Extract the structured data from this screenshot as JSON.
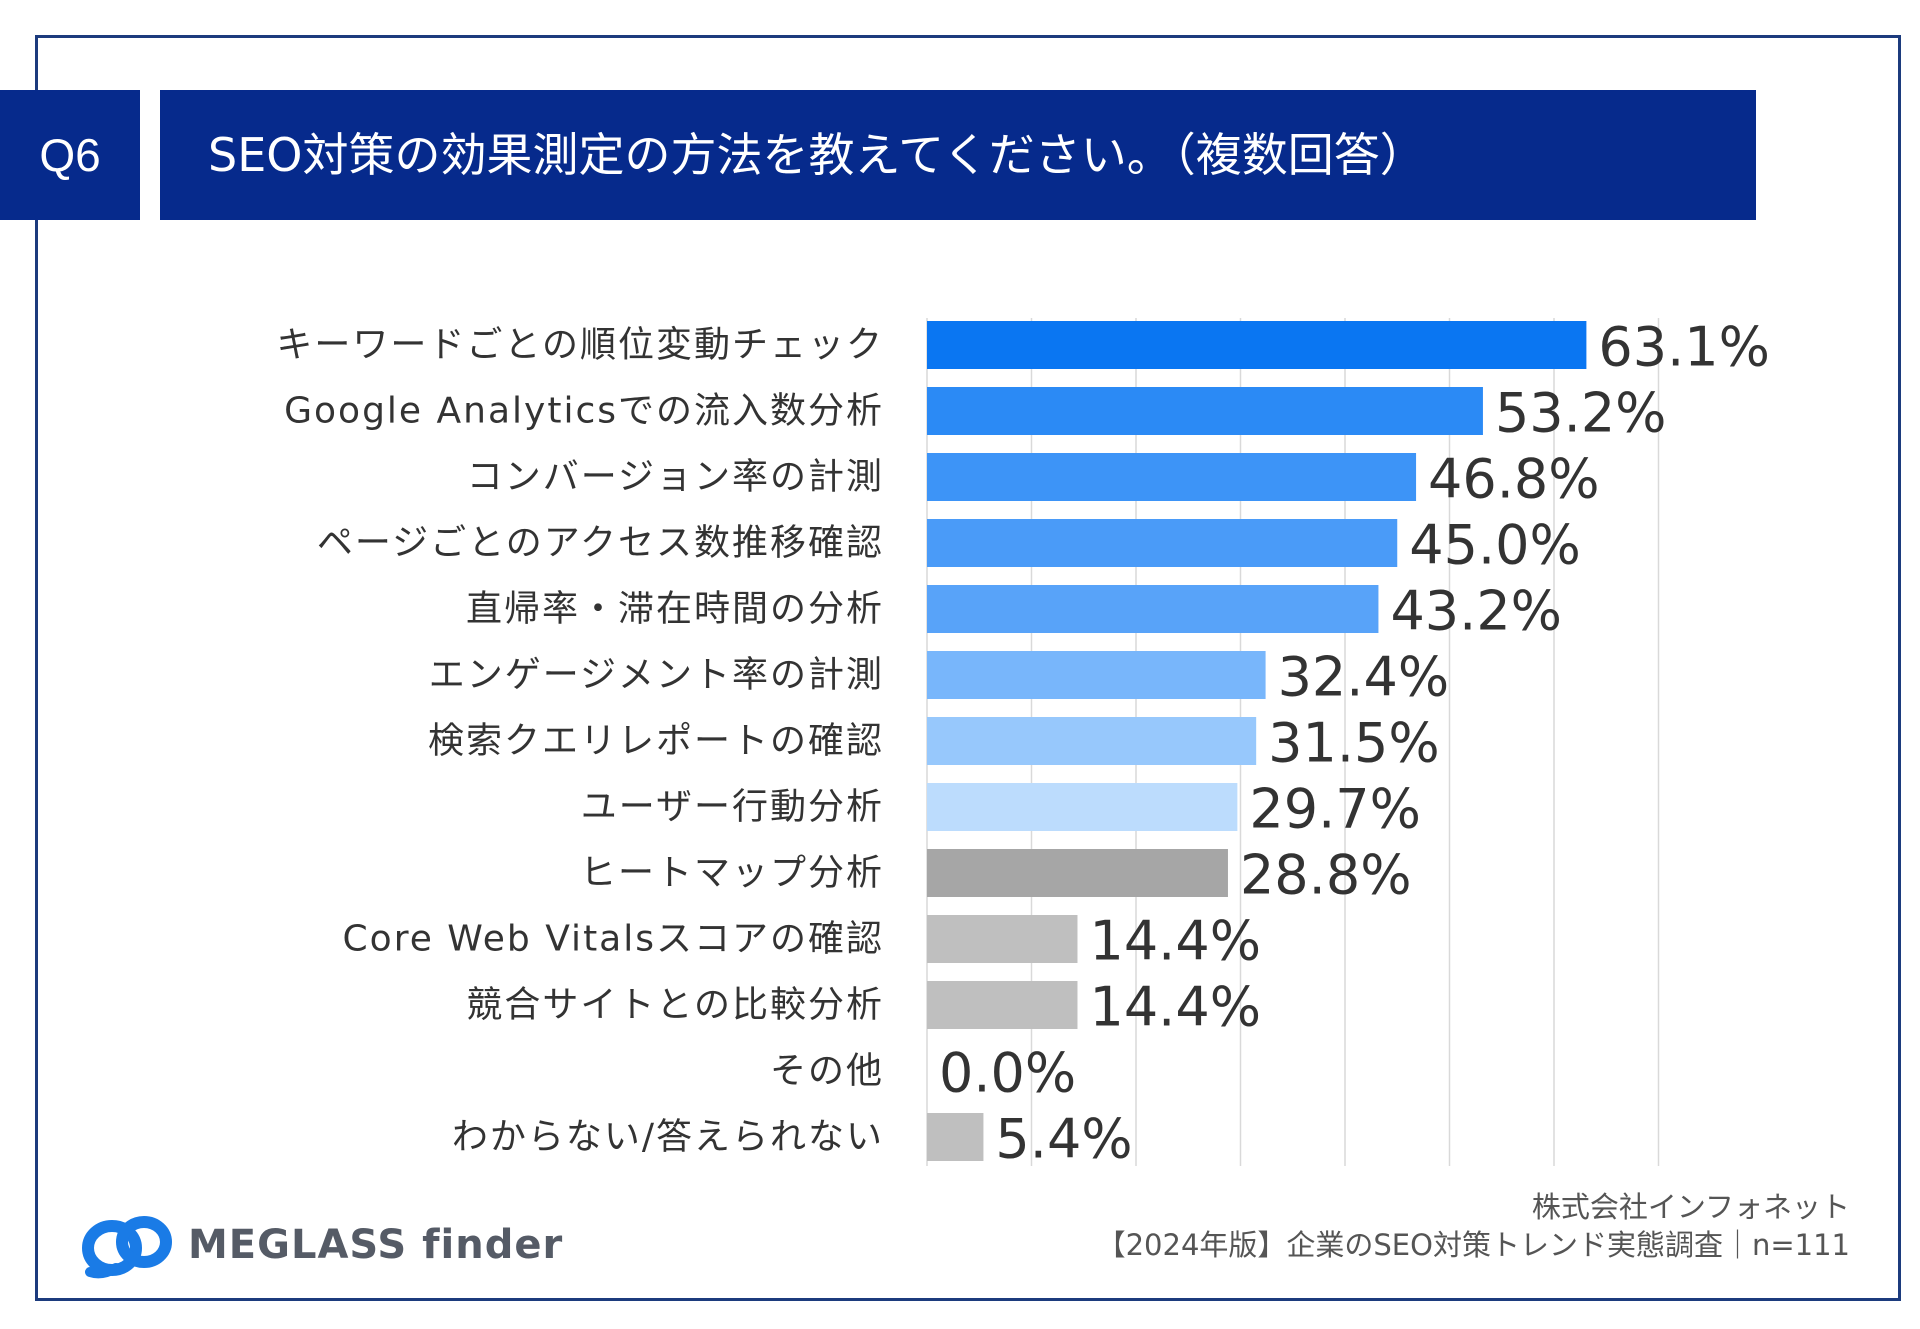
{
  "header": {
    "question_no": "Q6",
    "title": "SEO対策の効果測定の方法を教えてください。（複数回答）"
  },
  "chart_data": {
    "type": "bar",
    "orientation": "horizontal",
    "title": "SEO対策の効果測定の方法を教えてください。（複数回答）",
    "categories": [
      "キーワードごとの順位変動チェック",
      "Google Analyticsでの流入数分析",
      "コンバージョン率の計測",
      "ページごとのアクセス数推移確認",
      "直帰率・滞在時間の分析",
      "エンゲージメント率の計測",
      "検索クエリレポートの確認",
      "ユーザー行動分析",
      "ヒートマップ分析",
      "Core Web Vitalsスコアの確認",
      "競合サイトとの比較分析",
      "その他",
      "わからない/答えられない"
    ],
    "values": [
      63.1,
      53.2,
      46.8,
      45.0,
      43.2,
      32.4,
      31.5,
      29.7,
      28.8,
      14.4,
      14.4,
      0.0,
      5.4
    ],
    "value_labels": [
      "63.1%",
      "53.2%",
      "46.8%",
      "45.0%",
      "43.2%",
      "32.4%",
      "31.5%",
      "29.7%",
      "28.8%",
      "14.4%",
      "14.4%",
      "0.0%",
      "5.4%"
    ],
    "colors": [
      "#0a76f2",
      "#2b8af5",
      "#3d94f7",
      "#4a9bf8",
      "#58a3f9",
      "#78b6fb",
      "#97c8fc",
      "#bcdcfd",
      "#a6a6a6",
      "#bfbfbf",
      "#bfbfbf",
      "#bfbfbf",
      "#bfbfbf"
    ],
    "xlim": [
      0,
      70
    ],
    "grid_step": 10,
    "grid": true,
    "unit": "%"
  },
  "footer": {
    "logo_text": "MEGLASS finder",
    "company": "株式会社インフォネット",
    "survey": "【2024年版】企業のSEO対策トレンド実態調査｜n=111"
  },
  "colors": {
    "header_bg": "#062a8c",
    "frame": "#1c3b7d",
    "logo_blue": "#1a7be6"
  }
}
